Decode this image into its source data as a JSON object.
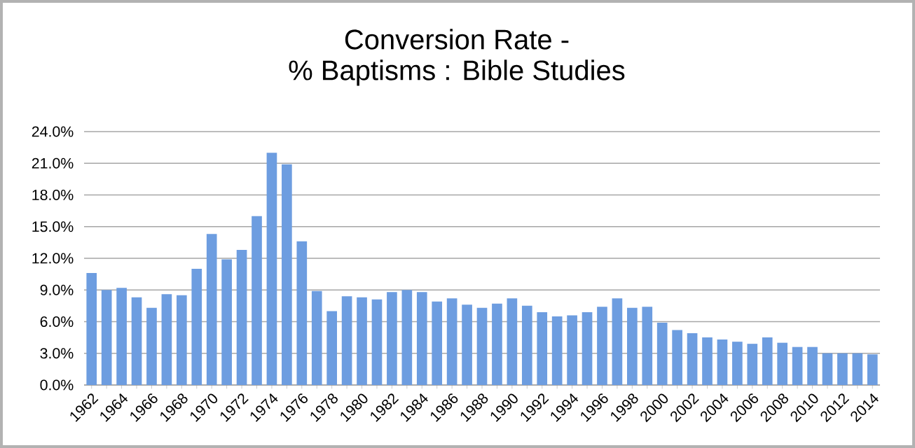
{
  "chart_data": {
    "type": "bar",
    "title": "Conversion Rate -",
    "subtitle": "% Baptisms : Bible Studies",
    "categories": [
      "1962",
      null,
      "1964",
      null,
      "1966",
      null,
      "1968",
      null,
      "1970",
      null,
      "1972",
      null,
      "1974",
      null,
      "1976",
      null,
      "1978",
      null,
      "1980",
      null,
      "1982",
      null,
      "1984",
      null,
      "1986",
      null,
      "1988",
      null,
      "1990",
      null,
      "1992",
      null,
      "1994",
      null,
      "1996",
      null,
      "1998",
      null,
      "2000",
      null,
      "2002",
      null,
      "2004",
      null,
      "2006",
      null,
      "2008",
      null,
      "2010",
      null,
      "2012",
      null,
      "2014"
    ],
    "values": [
      10.6,
      9.0,
      9.2,
      8.3,
      7.3,
      8.6,
      8.5,
      11.0,
      14.3,
      11.9,
      12.8,
      16.0,
      22.0,
      20.9,
      13.6,
      8.9,
      7.0,
      8.4,
      8.3,
      8.1,
      8.8,
      9.0,
      8.8,
      7.9,
      8.2,
      7.6,
      7.3,
      7.7,
      8.2,
      7.5,
      6.9,
      6.5,
      6.6,
      6.9,
      7.4,
      8.2,
      7.3,
      7.4,
      5.9,
      5.2,
      4.9,
      4.5,
      4.3,
      4.1,
      3.9,
      4.5,
      4.0,
      3.6,
      3.6,
      3.0,
      3.0,
      3.0,
      2.9
    ],
    "color": "#6d9de0",
    "ylim": [
      0,
      24
    ],
    "yticks": [
      {
        "value": 0,
        "label": "0.0%"
      },
      {
        "value": 3,
        "label": "3.0%"
      },
      {
        "value": 6,
        "label": "6.0%"
      },
      {
        "value": 9,
        "label": "9.0%"
      },
      {
        "value": 12,
        "label": "12.0%"
      },
      {
        "value": 15,
        "label": "15.0%"
      },
      {
        "value": 18,
        "label": "18.0%"
      },
      {
        "value": 21,
        "label": "21.0%"
      },
      {
        "value": 24,
        "label": "24.0%"
      }
    ],
    "grid": "y"
  }
}
